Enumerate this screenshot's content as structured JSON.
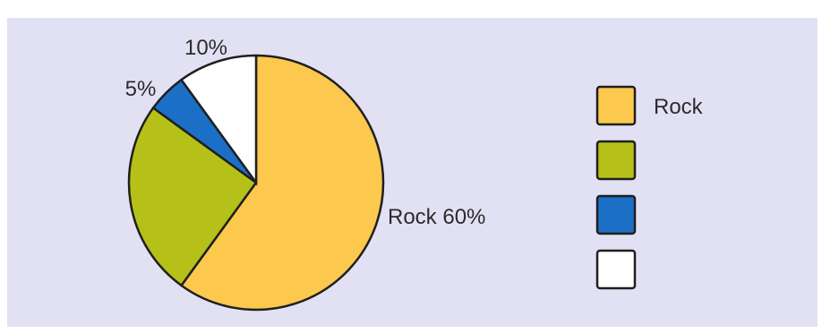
{
  "chart_data": {
    "type": "pie",
    "slices": [
      {
        "name": "Rock",
        "value": 60,
        "color": "#fcc84e",
        "label": "Rock 60%"
      },
      {
        "name": "",
        "value": 25,
        "color": "#b5c118",
        "label": ""
      },
      {
        "name": "",
        "value": 5,
        "color": "#1b6fc6",
        "label": "5%"
      },
      {
        "name": "",
        "value": 10,
        "color": "#ffffff",
        "label": "10%"
      }
    ],
    "legend": {
      "placement": "right",
      "entries": [
        {
          "label": "Rock",
          "color": "#fcc84e"
        },
        {
          "label": "",
          "color": "#b5c118"
        },
        {
          "label": "",
          "color": "#1b6fc6"
        },
        {
          "label": "",
          "color": "#ffffff"
        }
      ]
    },
    "start_angle_deg": 0,
    "direction": "clockwise",
    "background_color": "#e2e1f4"
  }
}
